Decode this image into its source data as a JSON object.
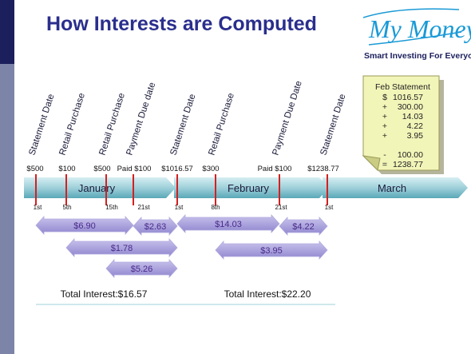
{
  "title": "How Interests are Computed",
  "logo": {
    "brand": "My Money",
    "tagline": "Smart Investing For Everyone."
  },
  "events": [
    {
      "label": "Statement Date",
      "amount": "$500",
      "day": "1st"
    },
    {
      "label": "Retail Purchase",
      "amount": "$100",
      "day": "5th"
    },
    {
      "label": "Retail Purchase",
      "amount": "$500",
      "day": "15th"
    },
    {
      "label": "Payment Due date",
      "amount": "Paid $100",
      "day": "21st"
    },
    {
      "label": "Statement Date",
      "amount": "$1016.57",
      "day": "1st"
    },
    {
      "label": "Retail Purchase",
      "amount": "$300",
      "day": "8th"
    },
    {
      "label": "Payment Due Date",
      "amount": "Paid $100",
      "day": "21st"
    },
    {
      "label": "Statement Date",
      "amount": "$1238.77",
      "day": "1st"
    }
  ],
  "months": [
    "January",
    "February",
    "March"
  ],
  "interest": [
    "$6.90",
    "$2.63",
    "$14.03",
    "$4.22",
    "$1.78",
    "$3.95",
    "$5.26"
  ],
  "totals": [
    "Total Interest:$16.57",
    "Total Interest:$22.20"
  ],
  "statement": {
    "title": "Feb Statement",
    "lines": [
      {
        "op": "$",
        "amount": "1016.57"
      },
      {
        "op": "+",
        "amount": "300.00"
      },
      {
        "op": "+",
        "amount": "14.03"
      },
      {
        "op": "+",
        "amount": "4.22"
      },
      {
        "op": "+",
        "amount": "3.95"
      },
      {
        "op": "-",
        "amount": "100.00"
      },
      {
        "op": "=",
        "amount": "1238.77"
      }
    ]
  }
}
